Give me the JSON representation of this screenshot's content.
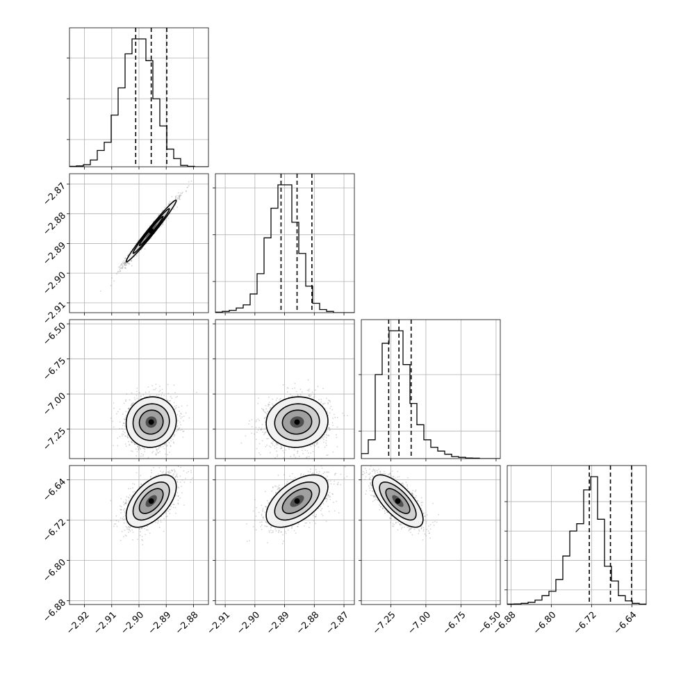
{
  "chart_data": {
    "type": "corner",
    "grid": true,
    "n_params": 4,
    "axis_label_rotation_deg": 45,
    "colors": {
      "line": "#000000",
      "grid": "#b0b0b0",
      "samples": "#808080"
    },
    "params": [
      {
        "range": [
          -2.9255,
          -2.8745
        ],
        "ticks": [
          -2.92,
          -2.91,
          -2.9,
          -2.89,
          -2.88
        ],
        "tick_labels": [
          "−2.92",
          "−2.91",
          "−2.90",
          "−2.89",
          "−2.88"
        ],
        "quantiles": [
          -2.9012,
          -2.8955,
          -2.8898
        ],
        "hist": [
          0.3,
          0.6,
          1.5,
          5,
          12,
          18,
          38,
          58,
          83,
          94,
          94,
          78,
          50,
          30,
          13,
          6,
          1,
          0.3,
          0,
          0
        ]
      },
      {
        "range": [
          -2.9133,
          -2.8665
        ],
        "ticks": [
          -2.91,
          -2.9,
          -2.89,
          -2.88,
          -2.87
        ],
        "tick_labels": [
          "−2.91",
          "−2.90",
          "−2.89",
          "−2.88",
          "−2.87"
        ],
        "quantiles": [
          -2.8912,
          -2.8858,
          -2.8808
        ],
        "hist": [
          0.3,
          0.8,
          1.5,
          3,
          5,
          12,
          25,
          48,
          67,
          82,
          82,
          58,
          38,
          17,
          6,
          2,
          0.8,
          0,
          0,
          0
        ]
      },
      {
        "range": [
          -7.46,
          -6.47
        ],
        "ticks": [
          -7.25,
          -7.0,
          -6.75,
          -6.5
        ],
        "tick_labels": [
          "−7.25",
          "−7.00",
          "−6.75",
          "−6.50"
        ],
        "quantiles": [
          -7.265,
          -7.192,
          -7.105
        ],
        "hist": [
          4,
          15,
          67,
          92,
          102,
          102,
          75,
          44,
          27,
          15,
          9,
          6,
          3.5,
          1.6,
          1,
          0.5,
          0.3,
          0,
          0,
          0
        ]
      },
      {
        "range": [
          -6.8875,
          -6.6115
        ],
        "ticks": [
          -6.88,
          -6.8,
          -6.72,
          -6.64
        ],
        "tick_labels": [
          "−6.88",
          "−6.80",
          "−6.72",
          "−6.64"
        ],
        "quantiles": [
          -6.7245,
          -6.6825,
          -6.6405
        ],
        "hist": [
          0.3,
          0.4,
          0.8,
          1.5,
          3,
          6,
          9,
          17,
          33,
          50,
          55,
          78,
          87,
          58,
          26,
          16,
          6,
          2.5,
          0.8,
          0.3
        ]
      }
    ],
    "hist_ticks": [
      [
        20,
        50,
        80
      ],
      [
        20,
        50,
        80
      ],
      [
        22,
        67
      ],
      [
        10,
        30,
        50,
        70
      ]
    ],
    "pairs": [
      {
        "x": 0,
        "y": 1,
        "mean": [
          -2.8955,
          -2.8858
        ],
        "sd": [
          0.0046,
          0.0052
        ],
        "rho": 0.985
      },
      {
        "x": 0,
        "y": 2,
        "mean": [
          -2.8955,
          -7.2
        ],
        "sd": [
          0.0046,
          0.09
        ],
        "rho": 0.05
      },
      {
        "x": 1,
        "y": 2,
        "mean": [
          -2.8858,
          -7.2
        ],
        "sd": [
          0.0052,
          0.09
        ],
        "rho": 0.05
      },
      {
        "x": 0,
        "y": 3,
        "mean": [
          -2.8955,
          -6.682
        ],
        "sd": [
          0.0046,
          0.026
        ],
        "rho": 0.55
      },
      {
        "x": 1,
        "y": 3,
        "mean": [
          -2.8858,
          -6.682
        ],
        "sd": [
          0.0052,
          0.026
        ],
        "rho": 0.55
      },
      {
        "x": 2,
        "y": 3,
        "mean": [
          -7.2,
          -6.682
        ],
        "sd": [
          0.09,
          0.026
        ],
        "rho": -0.7
      }
    ]
  }
}
